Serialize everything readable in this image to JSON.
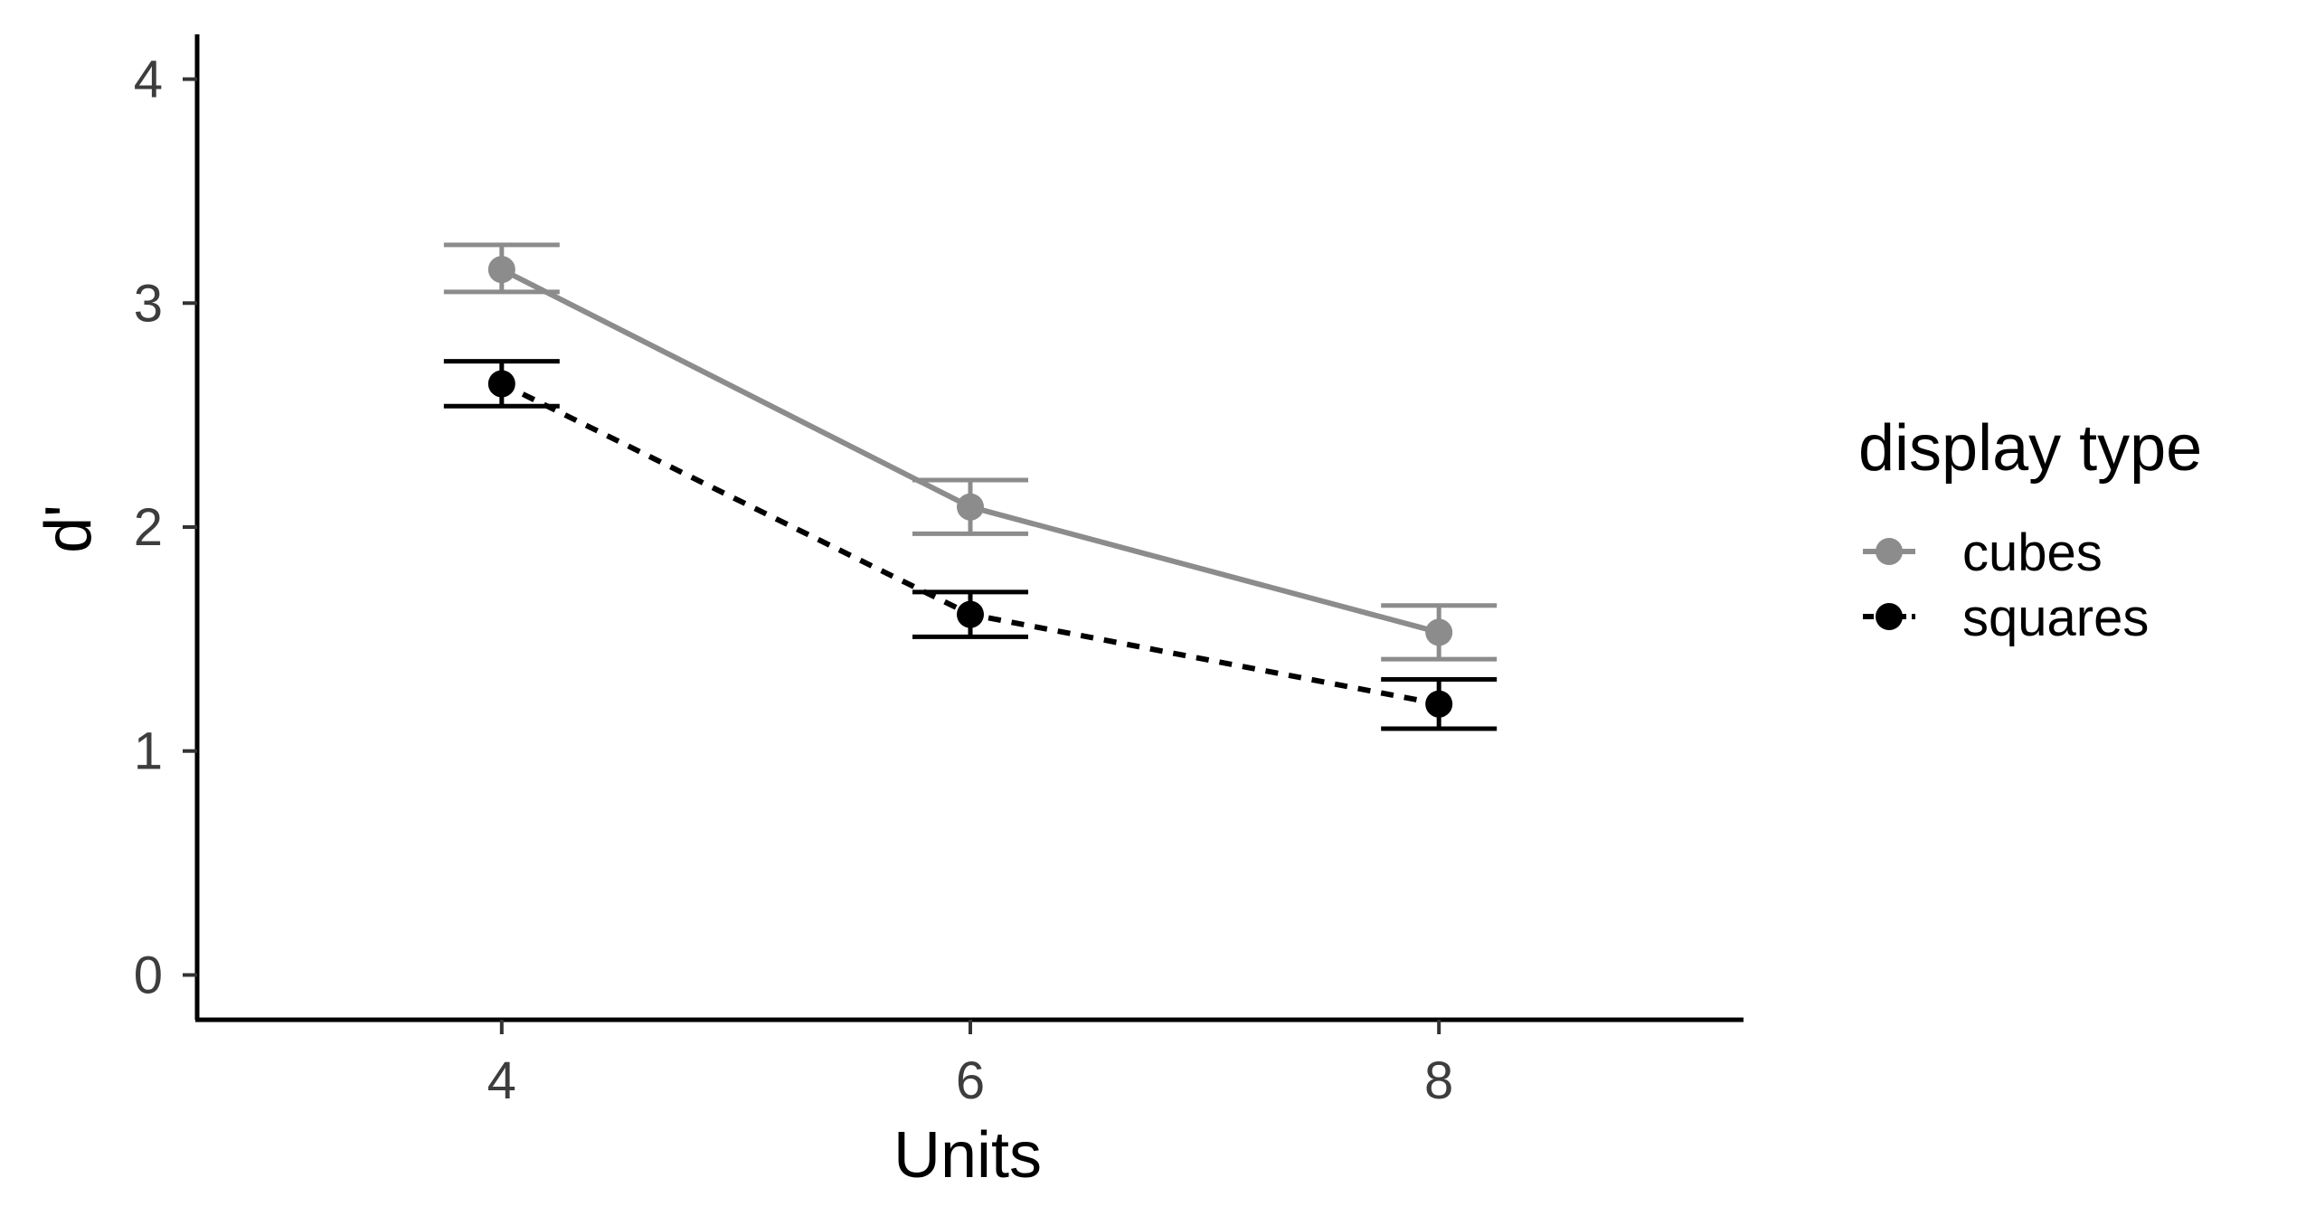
{
  "chart_data": {
    "type": "line",
    "xlabel": "Units",
    "ylabel": "d'",
    "x": [
      4,
      6,
      8
    ],
    "xlim": [
      2.7,
      9.3
    ],
    "xticks": [
      4,
      6,
      8
    ],
    "ylim": [
      -0.2,
      4.2
    ],
    "yticks": [
      0,
      1,
      2,
      3,
      4
    ],
    "grid": false,
    "legend": {
      "title": "display type",
      "position": "right"
    },
    "series": [
      {
        "name": "cubes",
        "color": "#8c8c8c",
        "line_style": "solid",
        "values": [
          3.15,
          2.09,
          1.53
        ],
        "error_low": [
          3.05,
          1.97,
          1.41
        ],
        "error_high": [
          3.26,
          2.21,
          1.65
        ]
      },
      {
        "name": "squares",
        "color": "#000000",
        "line_style": "dashed",
        "values": [
          2.64,
          1.61,
          1.21
        ],
        "error_low": [
          2.54,
          1.51,
          1.1
        ],
        "error_high": [
          2.74,
          1.71,
          1.32
        ]
      }
    ]
  }
}
